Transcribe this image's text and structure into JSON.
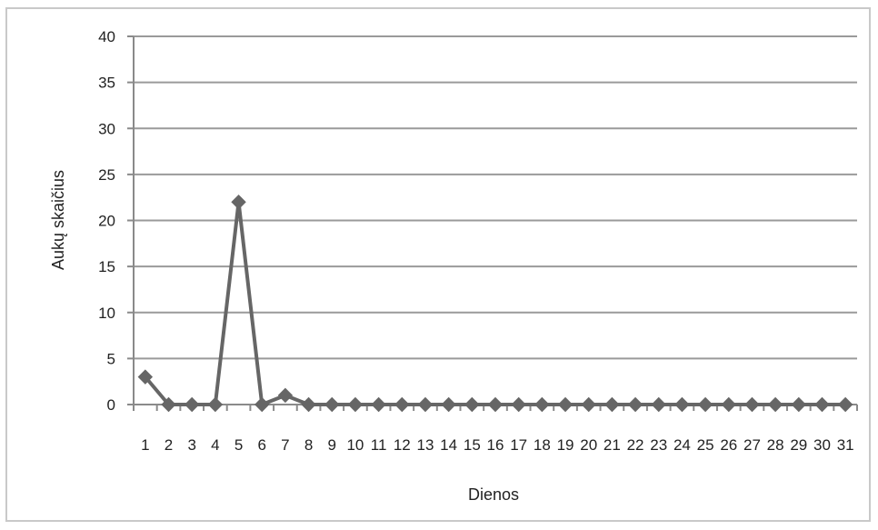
{
  "chart_data": {
    "type": "line",
    "title": "",
    "xlabel": "Dienos",
    "ylabel": "Aukų skaičius",
    "categories": [
      "1",
      "2",
      "3",
      "4",
      "5",
      "6",
      "7",
      "8",
      "9",
      "10",
      "11",
      "12",
      "13",
      "14",
      "15",
      "16",
      "17",
      "18",
      "19",
      "20",
      "21",
      "22",
      "23",
      "24",
      "25",
      "26",
      "27",
      "28",
      "29",
      "30",
      "31"
    ],
    "series": [
      {
        "values": [
          3,
          0,
          0,
          0,
          22,
          0,
          1,
          0,
          0,
          0,
          0,
          0,
          0,
          0,
          0,
          0,
          0,
          0,
          0,
          0,
          0,
          0,
          0,
          0,
          0,
          0,
          0,
          0,
          0,
          0,
          0
        ],
        "color": "#666666",
        "marker": "diamond"
      }
    ],
    "ylim": [
      0,
      40
    ],
    "yticks": [
      0,
      5,
      10,
      15,
      20,
      25,
      30,
      35,
      40
    ],
    "grid": true,
    "legend": "none"
  }
}
